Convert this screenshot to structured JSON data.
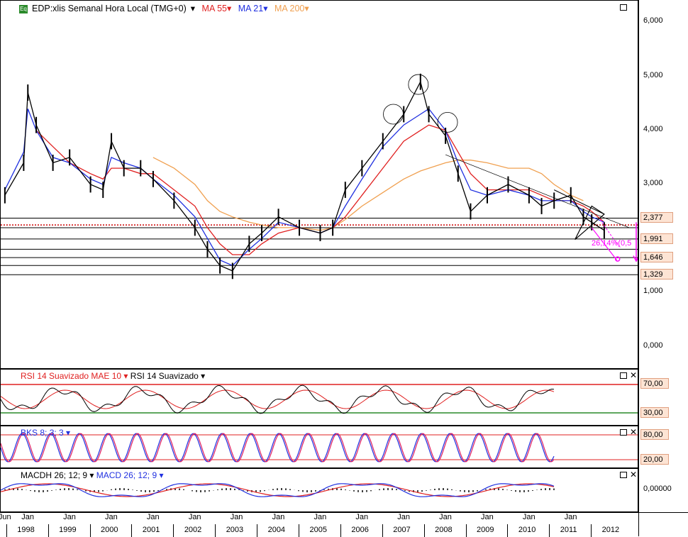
{
  "header": {
    "badge": "Eq",
    "title": "EDP:xlis Semanal Hora Local (TMG+0)",
    "ma55": "MA 55",
    "ma21": "MA 21",
    "ma200": "MA 200"
  },
  "colors": {
    "price": "#000000",
    "ma55": "#e02020",
    "ma21": "#2030e0",
    "ma200": "#f0a050",
    "projection": "#ff00ff",
    "support": "#000000",
    "dotted": "#cc0000"
  },
  "price_axis": [
    "6,000",
    "5,000",
    "4,000",
    "3,000",
    "2,000",
    "1,000",
    "0,000"
  ],
  "price_boxes": [
    "2,377",
    "1,991",
    "1,646",
    "1,329"
  ],
  "projection_label": "26,14%(0,5",
  "rsi": {
    "legend_smoothed": "RSI 14 Suavizado MAE 10",
    "legend_rsi": "RSI 14 Suavizado",
    "levels": [
      "70,00",
      "30,00"
    ]
  },
  "stoch": {
    "legend": "BKS 8; 3; 3",
    "levels": [
      "80,00",
      "20,00"
    ]
  },
  "macd": {
    "legend_hist": "MACDH 26; 12; 9",
    "legend_macd": "MACD 26; 12; 9",
    "level": "0,00000"
  },
  "x_axis": {
    "top": [
      "Jun",
      "Jan",
      "Jan",
      "Jan",
      "Jan",
      "Jan",
      "Jan",
      "Jan",
      "Jan",
      "Jan",
      "Jan",
      "Jan",
      "Jan",
      "Jan",
      "Jan"
    ],
    "years": [
      "1998",
      "1999",
      "2000",
      "2001",
      "2002",
      "2003",
      "2004",
      "2005",
      "2006",
      "2007",
      "2008",
      "2009",
      "2010",
      "2011",
      "2012"
    ]
  },
  "chart_data": {
    "type": "line",
    "x": [
      1997.45,
      1997.9,
      1998.0,
      1998.2,
      1998.6,
      1999.0,
      1999.5,
      1999.8,
      2000.0,
      2000.3,
      2000.7,
      2001.0,
      2001.5,
      2002.0,
      2002.3,
      2002.6,
      2002.9,
      2003.3,
      2003.6,
      2004.0,
      2004.5,
      2005.0,
      2005.3,
      2005.6,
      2006.0,
      2006.5,
      2007.0,
      2007.4,
      2007.6,
      2008.0,
      2008.3,
      2008.6,
      2009.0,
      2009.5,
      2010.0,
      2010.3,
      2010.6,
      2011.0,
      2011.3,
      2011.5,
      2011.8
    ],
    "series": [
      {
        "name": "EDP:xlis",
        "values": [
          2.8,
          3.4,
          4.7,
          4.1,
          3.4,
          3.5,
          3.0,
          2.9,
          3.8,
          3.3,
          3.3,
          3.1,
          2.7,
          2.2,
          1.8,
          1.5,
          1.4,
          1.9,
          2.1,
          2.4,
          2.2,
          2.1,
          2.2,
          2.9,
          3.3,
          3.8,
          4.3,
          4.9,
          4.3,
          3.9,
          3.2,
          2.5,
          2.8,
          3.0,
          2.8,
          2.6,
          2.7,
          2.8,
          2.4,
          2.3,
          2.15
        ]
      },
      {
        "name": "MA 21",
        "values": [
          2.9,
          3.6,
          4.4,
          4.0,
          3.5,
          3.4,
          3.1,
          3.0,
          3.5,
          3.4,
          3.3,
          3.1,
          2.8,
          2.4,
          2.0,
          1.6,
          1.5,
          1.8,
          2.0,
          2.3,
          2.2,
          2.1,
          2.2,
          2.6,
          3.1,
          3.7,
          4.1,
          4.3,
          4.4,
          4.0,
          3.4,
          2.9,
          2.8,
          2.9,
          2.8,
          2.7,
          2.7,
          2.7,
          2.5,
          2.4,
          2.3
        ]
      },
      {
        "name": "MA 55",
        "values": [
          null,
          null,
          null,
          4.0,
          3.7,
          3.4,
          3.2,
          3.1,
          3.3,
          3.3,
          3.2,
          3.2,
          2.9,
          2.6,
          2.2,
          1.9,
          1.7,
          1.7,
          1.9,
          2.1,
          2.2,
          2.1,
          2.2,
          2.4,
          2.8,
          3.3,
          3.8,
          4.0,
          4.1,
          4.0,
          3.6,
          3.2,
          2.9,
          2.9,
          2.9,
          2.8,
          2.7,
          2.7,
          2.6,
          2.5,
          2.3
        ]
      },
      {
        "name": "MA 200",
        "values": [
          null,
          null,
          null,
          null,
          null,
          null,
          null,
          null,
          null,
          null,
          null,
          3.5,
          3.3,
          3.0,
          2.7,
          2.5,
          2.4,
          2.3,
          2.25,
          2.2,
          2.2,
          2.15,
          2.2,
          2.35,
          2.6,
          2.85,
          3.1,
          3.25,
          3.3,
          3.4,
          3.45,
          3.45,
          3.4,
          3.3,
          3.3,
          3.2,
          3.0,
          2.8,
          2.7,
          null,
          null
        ]
      }
    ],
    "ylim": [
      -0.4,
      6.4
    ],
    "xlim": [
      1997.35,
      2012.6
    ],
    "horizontal_levels": [
      2.377,
      2.2,
      1.991,
      1.8,
      1.646,
      1.5,
      1.329
    ],
    "grid": false,
    "legend": "top-left"
  }
}
